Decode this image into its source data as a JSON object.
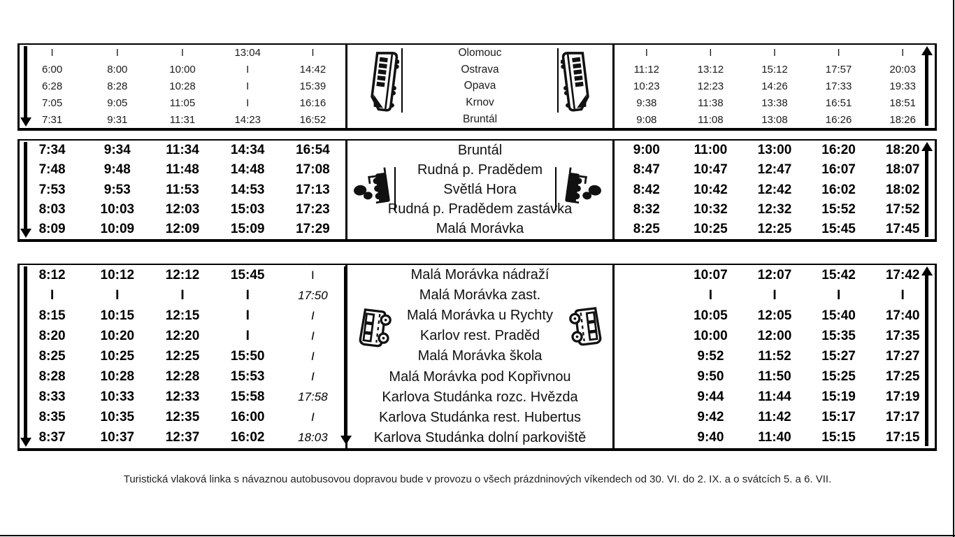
{
  "footer": {
    "note": "Turistická vlaková linka s návaznou autobusovou dopravou bude v provozu o všech prázdninových víkendech od 30. VI. do 2. IX. a o svátcích 5. a 6. VII."
  },
  "icons": {
    "top_section": "train-icon",
    "middle_section": "steam-locomotive-icon",
    "bottom_section": "bus-icon",
    "direction_left": "down-arrow-icon",
    "direction_right": "up-arrow-icon"
  },
  "tables": [
    {
      "id": "train-line-olomouc-bruntal",
      "stations": [
        "Olomouc",
        "Ostrava",
        "Opava",
        "Krnov",
        "Bruntál"
      ],
      "left_times": [
        [
          "I",
          "I",
          "I",
          "13:04",
          "I"
        ],
        [
          "6:00",
          "8:00",
          "10:00",
          "I",
          "14:42"
        ],
        [
          "6:28",
          "8:28",
          "10:28",
          "I",
          "15:39"
        ],
        [
          "7:05",
          "9:05",
          "11:05",
          "I",
          "16:16"
        ],
        [
          "7:31",
          "9:31",
          "11:31",
          "14:23",
          "16:52"
        ]
      ],
      "right_times": [
        [
          "I",
          "I",
          "I",
          "I",
          "I"
        ],
        [
          "11:12",
          "13:12",
          "15:12",
          "17:57",
          "20:03"
        ],
        [
          "10:23",
          "12:23",
          "14:26",
          "17:33",
          "19:33"
        ],
        [
          "9:38",
          "11:38",
          "13:38",
          "16:51",
          "18:51"
        ],
        [
          "9:08",
          "11:08",
          "13:08",
          "16:26",
          "18:26"
        ]
      ]
    },
    {
      "id": "steam-train-line-bruntal-mala-moravka",
      "stations": [
        "Bruntál",
        "Rudná p. Pradědem",
        "Světlá Hora",
        "Rudná p. Pradědem zastávka",
        "Malá Morávka"
      ],
      "left_times": [
        [
          "7:34",
          "9:34",
          "11:34",
          "14:34",
          "16:54"
        ],
        [
          "7:48",
          "9:48",
          "11:48",
          "14:48",
          "17:08"
        ],
        [
          "7:53",
          "9:53",
          "11:53",
          "14:53",
          "17:13"
        ],
        [
          "8:03",
          "10:03",
          "12:03",
          "15:03",
          "17:23"
        ],
        [
          "8:09",
          "10:09",
          "12:09",
          "15:09",
          "17:29"
        ]
      ],
      "right_times": [
        [
          "9:00",
          "11:00",
          "13:00",
          "16:20",
          "18:20"
        ],
        [
          "8:47",
          "10:47",
          "12:47",
          "16:07",
          "18:07"
        ],
        [
          "8:42",
          "10:42",
          "12:42",
          "16:02",
          "18:02"
        ],
        [
          "8:32",
          "10:32",
          "12:32",
          "15:52",
          "17:52"
        ],
        [
          "8:25",
          "10:25",
          "12:25",
          "15:45",
          "17:45"
        ]
      ]
    },
    {
      "id": "bus-line-mala-moravka-karlova-studanka",
      "stations": [
        "Malá Morávka nádraží",
        "Malá Morávka zast.",
        "Malá Morávka u Rychty",
        "Karlov rest. Praděd",
        "Malá Morávka škola",
        "Malá Morávka pod Kopřivnou",
        "Karlova Studánka rozc. Hvězda",
        "Karlova Studánka rest. Hubertus",
        "Karlova Studánka dolní parkoviště"
      ],
      "left_times": [
        [
          "8:12",
          "10:12",
          "12:12",
          "15:45",
          {
            "t": "I",
            "style": "regular"
          }
        ],
        [
          "I",
          "I",
          "I",
          "I",
          {
            "t": "17:50",
            "style": "italic"
          }
        ],
        [
          "8:15",
          "10:15",
          "12:15",
          "I",
          {
            "t": "I",
            "style": "italic"
          }
        ],
        [
          "8:20",
          "10:20",
          "12:20",
          "I",
          {
            "t": "I",
            "style": "italic"
          }
        ],
        [
          "8:25",
          "10:25",
          "12:25",
          "15:50",
          {
            "t": "I",
            "style": "italic"
          }
        ],
        [
          "8:28",
          "10:28",
          "12:28",
          "15:53",
          {
            "t": "I",
            "style": "italic"
          }
        ],
        [
          "8:33",
          "10:33",
          "12:33",
          "15:58",
          {
            "t": "17:58",
            "style": "italic"
          }
        ],
        [
          "8:35",
          "10:35",
          "12:35",
          "16:00",
          {
            "t": "I",
            "style": "italic"
          }
        ],
        [
          "8:37",
          "10:37",
          "12:37",
          "16:02",
          {
            "t": "18:03",
            "style": "italic"
          }
        ]
      ],
      "right_times": [
        [
          "",
          "10:07",
          "12:07",
          "15:42",
          "17:42"
        ],
        [
          "",
          "I",
          "I",
          "I",
          "I"
        ],
        [
          "",
          "10:05",
          "12:05",
          "15:40",
          "17:40"
        ],
        [
          "",
          "10:00",
          "12:00",
          "15:35",
          "17:35"
        ],
        [
          "",
          "9:52",
          "11:52",
          "15:27",
          "17:27"
        ],
        [
          "",
          "9:50",
          "11:50",
          "15:25",
          "17:25"
        ],
        [
          "",
          "9:44",
          "11:44",
          "15:19",
          "17:19"
        ],
        [
          "",
          "9:42",
          "11:42",
          "15:17",
          "17:17"
        ],
        [
          "",
          "9:40",
          "11:40",
          "15:15",
          "17:15"
        ]
      ]
    }
  ]
}
